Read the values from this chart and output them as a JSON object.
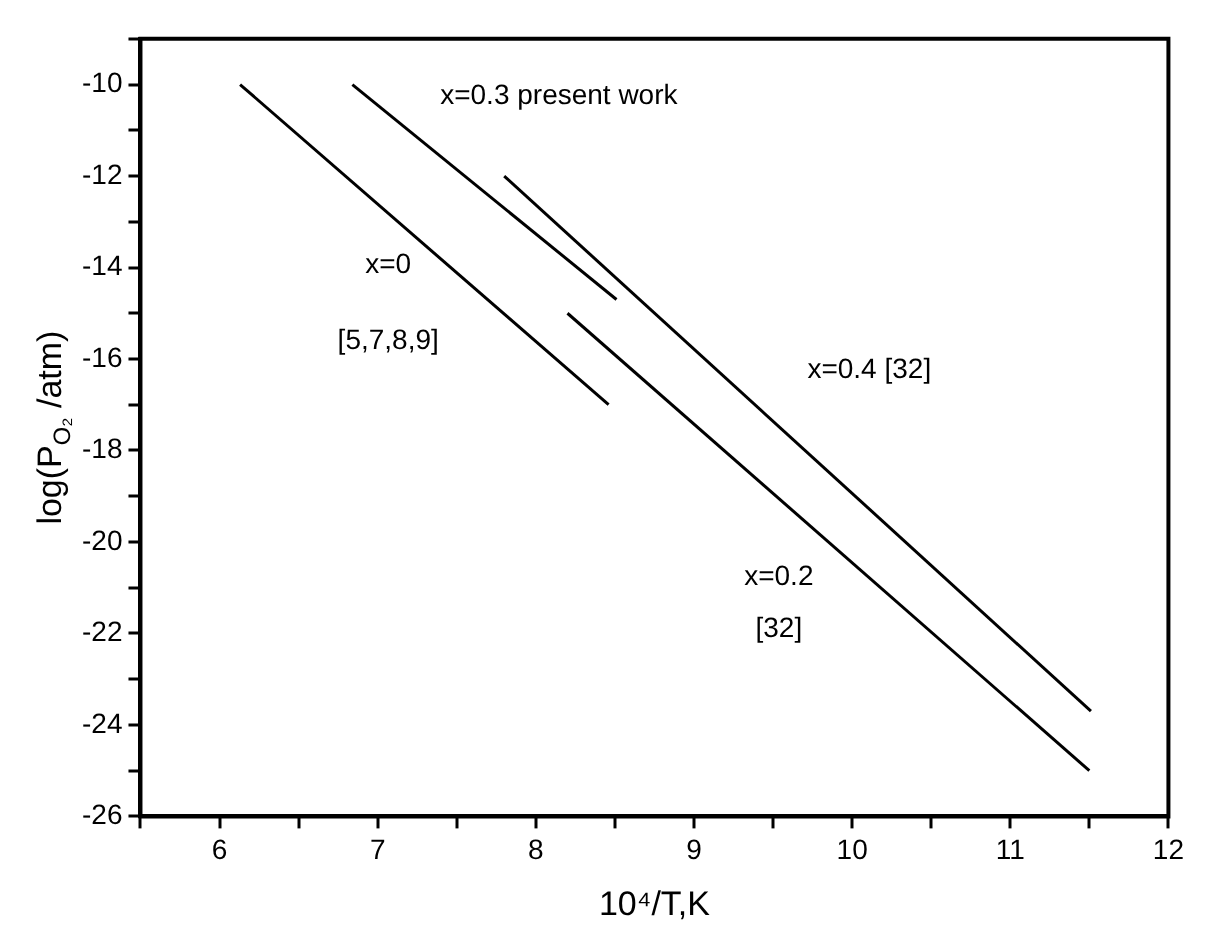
{
  "chart_data": {
    "type": "line",
    "xlabel": "10⁴/T,K",
    "ylabel": "log(P$_{O₂}$ /atm)",
    "series": [
      {
        "color": "#000000",
        "x": [
          6.13,
          8.46
        ],
        "values": [
          -10,
          -17
        ]
      },
      {
        "color": "#000000",
        "x": [
          6.84,
          8.51
        ],
        "values": [
          -10,
          -14.7
        ]
      },
      {
        "color": "#000000",
        "x": [
          7.8,
          11.51
        ],
        "values": [
          -12,
          -23.7
        ]
      },
      {
        "color": "#000000",
        "x": [
          8.2,
          11.5
        ],
        "values": [
          -15,
          -25
        ]
      }
    ],
    "annotations": [
      "x=0.3 present work",
      "x=0\n[5,7,8,9]",
      "x=0.4 [32]",
      "x=0.2\n[32]"
    ],
    "xlim": [
      5.5,
      12
    ],
    "ylim": [
      -26,
      -9
    ],
    "xticks": [
      {
        "value": 5.5,
        "label": null
      },
      6,
      {
        "value": 6.5,
        "label": null
      },
      7,
      {
        "value": 7.5,
        "label": null
      },
      8,
      {
        "value": 8.5,
        "label": null
      },
      9,
      {
        "value": 9.5,
        "label": null
      },
      10,
      {
        "value": 10.5,
        "label": null
      },
      11,
      {
        "value": 11.5,
        "label": null
      },
      12
    ],
    "yticks": [
      -26,
      {
        "value": -25,
        "label": null
      },
      -24,
      {
        "value": -23,
        "label": null
      },
      -22,
      {
        "value": -21,
        "label": null
      },
      -20,
      {
        "value": -19,
        "label": null
      },
      -18,
      {
        "value": -17,
        "label": null
      },
      -16,
      {
        "value": -15,
        "label": null
      },
      -14,
      {
        "value": -13,
        "label": null
      },
      -12,
      {
        "value": -11,
        "label": null
      },
      -10,
      {
        "value": -9,
        "label": null
      }
    ],
    "grid": false,
    "legend": false,
    "marker": "none",
    "line_style": "solid"
  }
}
